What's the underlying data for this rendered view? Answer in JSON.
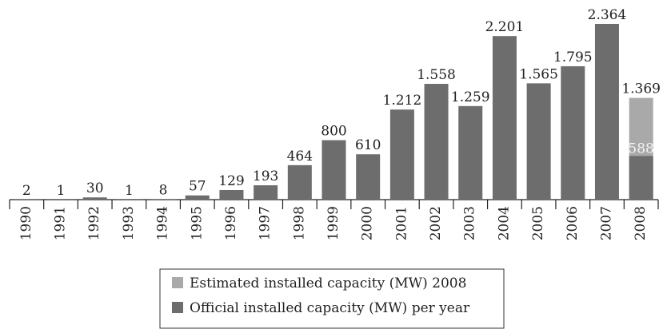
{
  "chart_data": {
    "type": "bar",
    "categories": [
      "1990",
      "1991",
      "1992",
      "1993",
      "1994",
      "1995",
      "1996",
      "1997",
      "1998",
      "1999",
      "2000",
      "2001",
      "2002",
      "2003",
      "2004",
      "2005",
      "2006",
      "2007",
      "2008"
    ],
    "series": [
      {
        "name": "Estimated installed capacity (MW) 2008",
        "color": "#a9a9a9",
        "values": [
          null,
          null,
          null,
          null,
          null,
          null,
          null,
          null,
          null,
          null,
          null,
          null,
          null,
          null,
          null,
          null,
          null,
          null,
          1369
        ],
        "value_labels": [
          null,
          null,
          null,
          null,
          null,
          null,
          null,
          null,
          null,
          null,
          null,
          null,
          null,
          null,
          null,
          null,
          null,
          null,
          "1.369"
        ]
      },
      {
        "name": "Official installed capacity (MW) per year",
        "color": "#6d6d6d",
        "values": [
          2,
          1,
          30,
          1,
          8,
          57,
          129,
          193,
          464,
          800,
          610,
          1212,
          1558,
          1259,
          2201,
          1565,
          1795,
          2364,
          588
        ],
        "value_labels": [
          "2",
          "1",
          "30",
          "1",
          "8",
          "57",
          "129",
          "193",
          "464",
          "800",
          "610",
          "1.212",
          "1.558",
          "1.259",
          "2.201",
          "1.565",
          "1.795",
          "2.364",
          "588"
        ]
      }
    ],
    "legend": "bottom"
  }
}
